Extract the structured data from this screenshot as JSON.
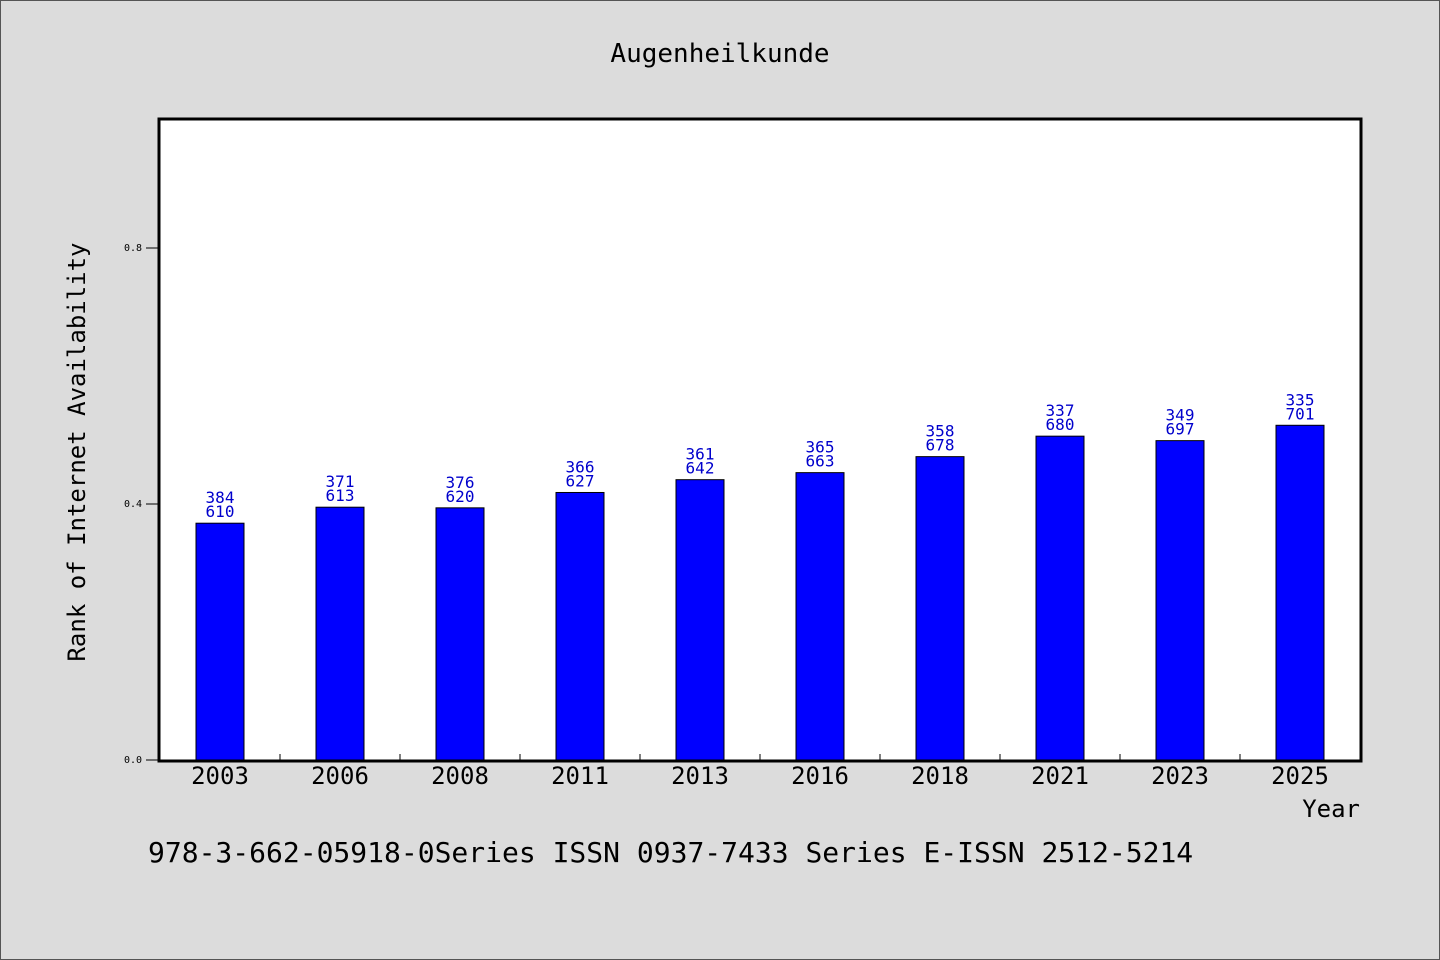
{
  "chart_data": {
    "type": "bar",
    "title": "Augenheilkunde",
    "xlabel": "Year",
    "ylabel": "Rank of Internet Availability",
    "footer": "978-3-662-05918-0Series ISSN 0937-7433 Series E-ISSN 2512-5214",
    "categories": [
      "2003",
      "2006",
      "2008",
      "2011",
      "2013",
      "2016",
      "2018",
      "2021",
      "2023",
      "2025"
    ],
    "values": [
      0.37,
      0.395,
      0.394,
      0.418,
      0.438,
      0.449,
      0.474,
      0.506,
      0.499,
      0.523
    ],
    "label_top": [
      "384",
      "371",
      "376",
      "366",
      "361",
      "365",
      "358",
      "337",
      "349",
      "335"
    ],
    "label_bottom": [
      "610",
      "613",
      "620",
      "627",
      "642",
      "663",
      "678",
      "680",
      "697",
      "701"
    ],
    "yticks": [
      0.0,
      0.4,
      0.8
    ],
    "ytick_labels": [
      "0.0",
      "0.4",
      "0.8"
    ],
    "ylim": [
      0,
      1.0
    ],
    "grid": false,
    "bar_color": "#0000ff",
    "label_color": "#0000cc"
  }
}
